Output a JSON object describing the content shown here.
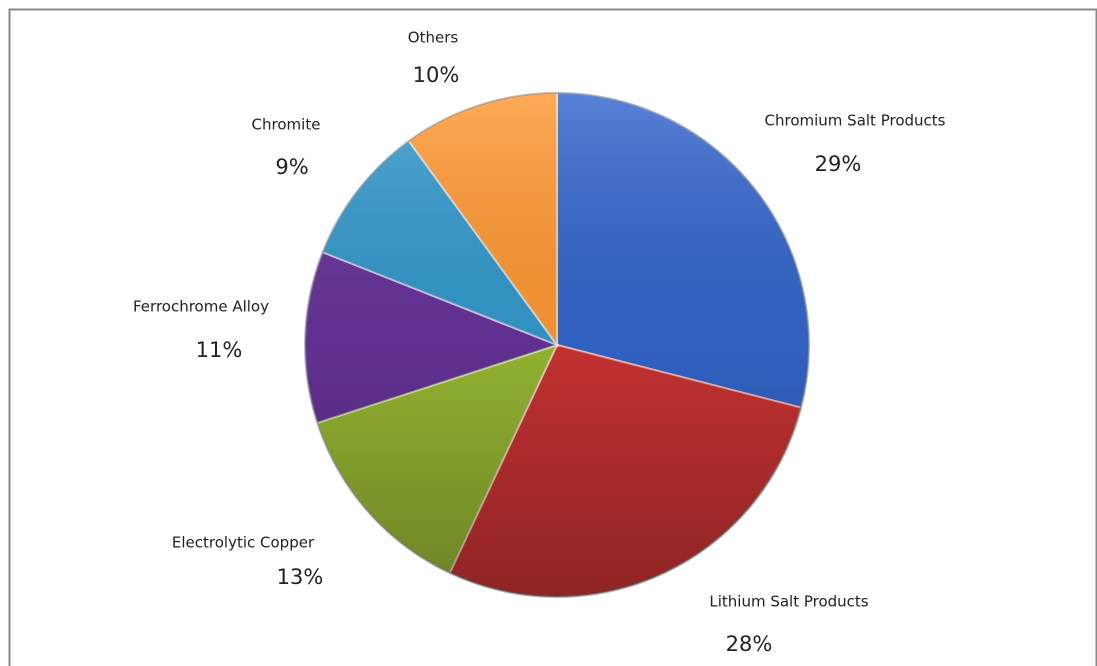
{
  "chart_data": {
    "type": "pie",
    "categories": [
      "Chromium Salt Products",
      "Lithium Salt Products",
      "Electrolytic Copper",
      "Ferrochrome Alloy",
      "Chromite",
      "Others"
    ],
    "values": [
      29,
      28,
      13,
      11,
      9,
      10
    ],
    "value_labels": [
      "29%",
      "28%",
      "13%",
      "11%",
      "9%",
      "10%"
    ],
    "colors": [
      "#3366cc",
      "#cc3333",
      "#99bb33",
      "#663399",
      "#3399cc",
      "#ff9933"
    ]
  }
}
